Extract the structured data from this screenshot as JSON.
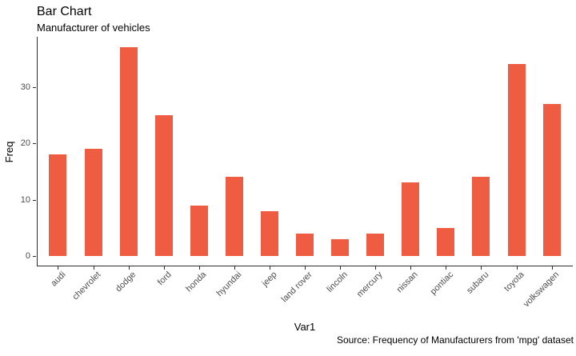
{
  "chart_data": {
    "type": "bar",
    "title": "Bar Chart",
    "subtitle": "Manufacturer of vehicles",
    "xlabel": "Var1",
    "ylabel": "Freq",
    "caption": "Source: Frequency of Manufacturers from 'mpg' dataset",
    "categories": [
      "audi",
      "chevrolet",
      "dodge",
      "ford",
      "honda",
      "hyundai",
      "jeep",
      "land rover",
      "lincoln",
      "mercury",
      "nissan",
      "pontiac",
      "subaru",
      "toyota",
      "volkswagen"
    ],
    "values": [
      18,
      19,
      37,
      25,
      9,
      14,
      8,
      4,
      3,
      4,
      13,
      5,
      14,
      34,
      27
    ],
    "yticks": [
      0,
      10,
      20,
      30
    ],
    "ylim": [
      0,
      38.85
    ],
    "grid": false,
    "legend": false,
    "bar_color": "#EE5C42",
    "axis_line_color": "#2B2B2B",
    "axis_text_color": "#4D4D4D",
    "background_color": "#FFFFFF"
  }
}
